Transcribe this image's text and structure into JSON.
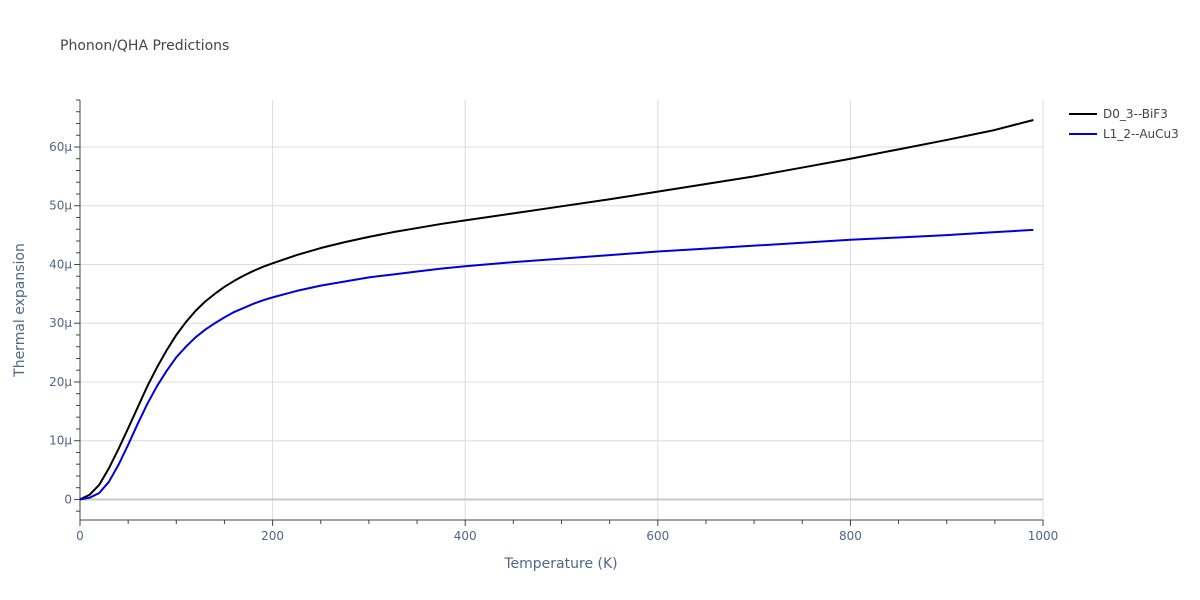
{
  "chart_data": {
    "type": "line",
    "title": "Phonon/QHA Predictions",
    "xlabel": "Temperature (K)",
    "ylabel": "Thermal expansion",
    "xlim": [
      0,
      1000
    ],
    "ylim": [
      -3.5,
      68
    ],
    "x_ticks": [
      0,
      200,
      400,
      600,
      800,
      1000
    ],
    "x_tick_labels": [
      "0",
      "200",
      "400",
      "600",
      "800",
      "1000"
    ],
    "y_ticks": [
      0,
      10,
      20,
      30,
      40,
      50,
      60
    ],
    "y_tick_labels": [
      "0",
      "10μ",
      "20μ",
      "30μ",
      "40μ",
      "50μ",
      "60μ"
    ],
    "grid": true,
    "legend_position": "top-right",
    "series": [
      {
        "name": "D0_3--BiF3",
        "color": "#000000",
        "x": [
          0,
          10,
          20,
          30,
          40,
          50,
          60,
          70,
          80,
          90,
          100,
          110,
          120,
          130,
          140,
          150,
          160,
          170,
          180,
          190,
          200,
          225,
          250,
          275,
          300,
          325,
          350,
          375,
          400,
          450,
          500,
          550,
          600,
          650,
          700,
          750,
          800,
          850,
          900,
          950,
          990
        ],
        "y": [
          0,
          0.8,
          2.5,
          5.3,
          8.6,
          12.1,
          15.7,
          19.3,
          22.5,
          25.4,
          28.0,
          30.2,
          32.1,
          33.7,
          35.0,
          36.2,
          37.2,
          38.1,
          38.9,
          39.6,
          40.2,
          41.6,
          42.8,
          43.8,
          44.7,
          45.5,
          46.2,
          46.9,
          47.5,
          48.7,
          49.9,
          51.1,
          52.4,
          53.7,
          55.0,
          56.5,
          58.0,
          59.6,
          61.2,
          62.9,
          64.6
        ]
      },
      {
        "name": "L1_2--AuCu3",
        "color": "#0000dd",
        "x": [
          0,
          10,
          20,
          30,
          40,
          50,
          60,
          70,
          80,
          90,
          100,
          110,
          120,
          130,
          140,
          150,
          160,
          170,
          180,
          190,
          200,
          225,
          250,
          275,
          300,
          325,
          350,
          375,
          400,
          450,
          500,
          550,
          600,
          650,
          700,
          750,
          800,
          850,
          900,
          950,
          990
        ],
        "y": [
          0,
          0.3,
          1.1,
          3.0,
          5.9,
          9.3,
          12.9,
          16.3,
          19.3,
          21.9,
          24.2,
          26.0,
          27.6,
          28.9,
          30.0,
          31.0,
          31.9,
          32.6,
          33.3,
          33.9,
          34.4,
          35.5,
          36.4,
          37.1,
          37.8,
          38.3,
          38.8,
          39.3,
          39.7,
          40.4,
          41.0,
          41.6,
          42.2,
          42.7,
          43.2,
          43.7,
          44.2,
          44.6,
          45.0,
          45.5,
          45.9
        ]
      }
    ]
  }
}
